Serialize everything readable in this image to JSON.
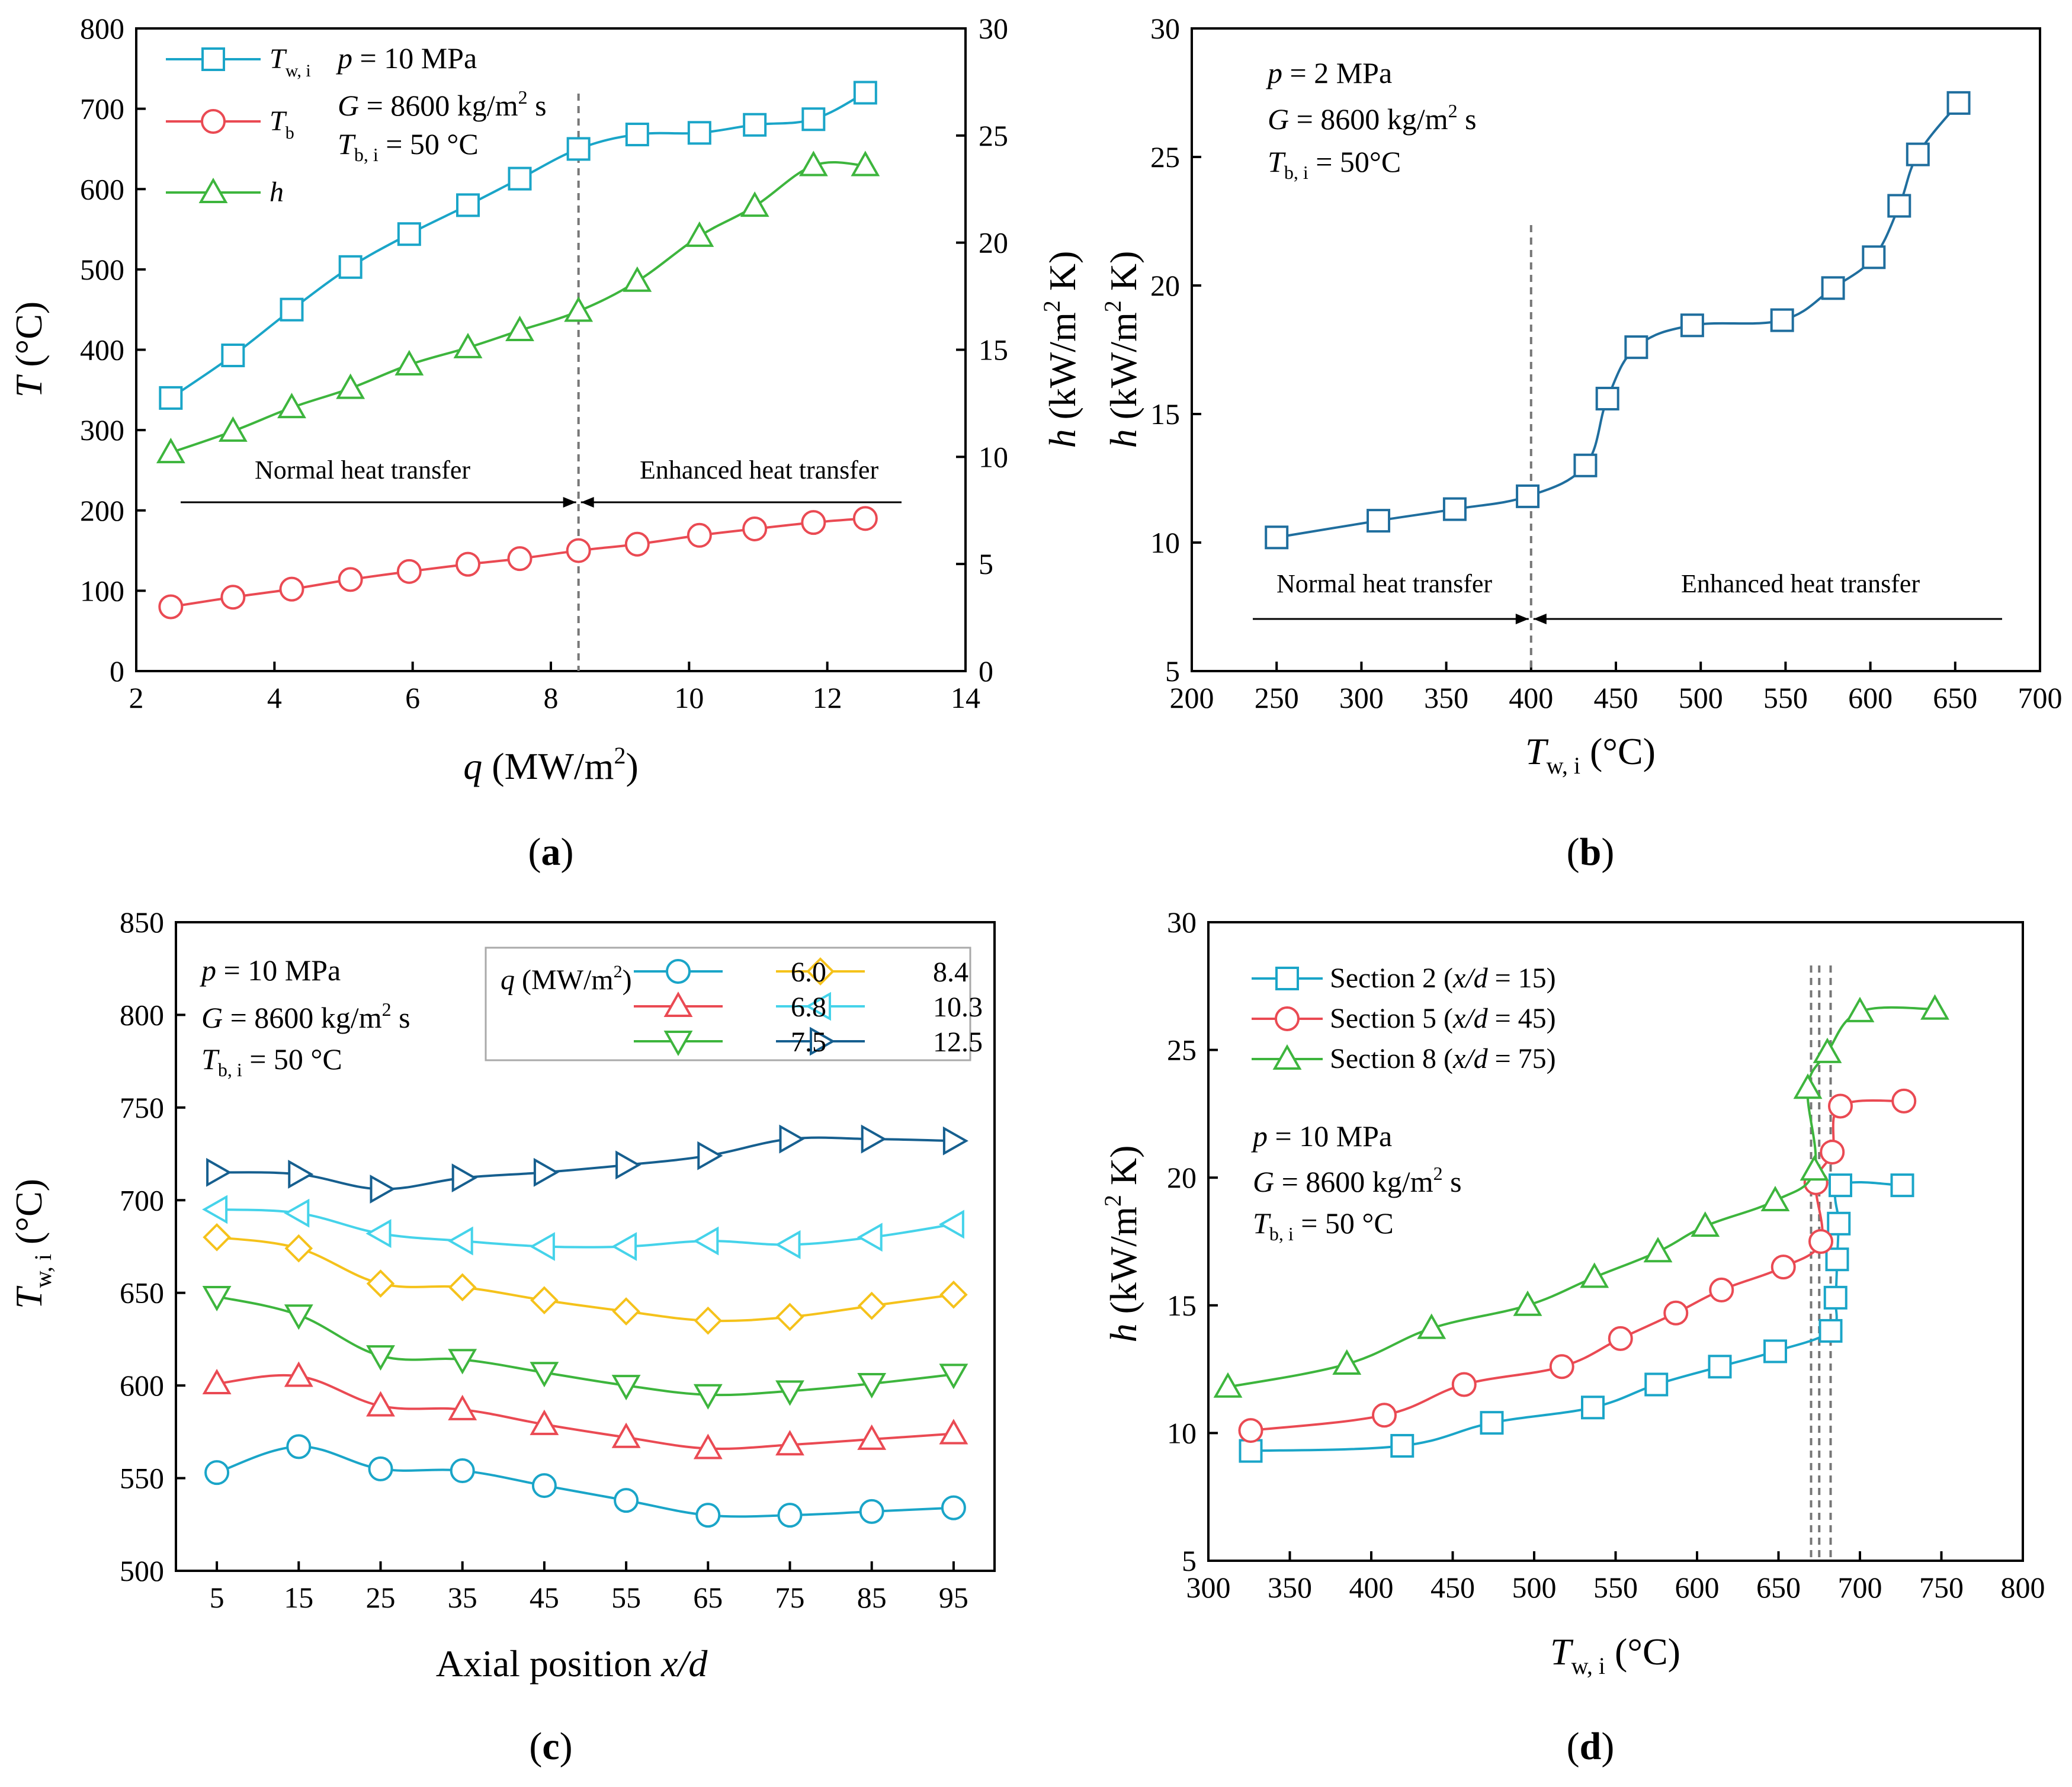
{
  "colors": {
    "cyan": "#1aa5c8",
    "red": "#ea4a53",
    "green": "#3db53d",
    "yellow": "#f5c21b",
    "lightcyan": "#45d3ea",
    "navy": "#165f8f",
    "steel": "#1f6e9e"
  },
  "chart_data": [
    {
      "id": "a",
      "type": "line",
      "caption_letter": "a",
      "xlabel_sym": "q",
      "xlabel_unit": " (MW/m",
      "xlabel_sup": "2",
      "xlabel_close": ")",
      "ylabel_sym": "T",
      "ylabel_unit": " (°C)",
      "y2label_sym": "h",
      "y2label_unit": " (kW/m",
      "y2label_sup": "2",
      "y2label_close": " K)",
      "xlim": [
        2,
        14
      ],
      "ylim": [
        0,
        800
      ],
      "y2lim": [
        0,
        30
      ],
      "xticks": [
        2,
        4,
        6,
        8,
        10,
        12,
        14
      ],
      "yticks": [
        0,
        100,
        200,
        300,
        400,
        500,
        600,
        700,
        800
      ],
      "y2ticks": [
        0,
        5,
        10,
        15,
        20,
        25,
        30
      ],
      "annotations": {
        "p_sym": "p",
        "p_rest": " = 10 MPa",
        "G_sym": "G",
        "G_rest": " = 8600 kg/m",
        "G_sup": "2",
        "G_tail": " s",
        "T_sym": "T",
        "T_sub": "b, i",
        "T_rest": " = 50 °C"
      },
      "regions": {
        "left": "Normal heat transfer",
        "right": "Enhanced heat transfer"
      },
      "boundary_x": 8.4,
      "legend": [
        {
          "sym": "T",
          "sub": "w, i"
        },
        {
          "sym": "T",
          "sub": "b"
        },
        {
          "sym": "h",
          "sub": ""
        }
      ],
      "series": [
        {
          "name": "Tw,i",
          "axis": "left",
          "marker": "square",
          "color": "#1aa5c8",
          "x": [
            2.5,
            3.4,
            4.25,
            5.1,
            5.95,
            6.8,
            7.55,
            8.4,
            9.25,
            10.15,
            10.95,
            11.8,
            12.55
          ],
          "y": [
            340,
            393,
            450,
            503,
            544,
            580,
            613,
            650,
            668,
            670,
            680,
            687,
            720
          ]
        },
        {
          "name": "Tb",
          "axis": "left",
          "marker": "circle",
          "color": "#ea4a53",
          "x": [
            2.5,
            3.4,
            4.25,
            5.1,
            5.95,
            6.8,
            7.55,
            8.4,
            9.25,
            10.15,
            10.95,
            11.8,
            12.55
          ],
          "y": [
            80,
            92,
            102,
            114,
            124,
            133,
            140,
            150,
            158,
            169,
            177,
            185,
            190
          ]
        },
        {
          "name": "h",
          "axis": "right",
          "marker": "triangle-up",
          "color": "#3db53d",
          "x": [
            2.5,
            3.4,
            4.25,
            5.1,
            5.95,
            6.8,
            7.55,
            8.4,
            9.25,
            10.15,
            10.95,
            11.8,
            12.55
          ],
          "y": [
            10.2,
            11.2,
            12.3,
            13.2,
            14.3,
            15.1,
            15.9,
            16.8,
            18.2,
            20.3,
            21.7,
            23.6,
            23.6
          ]
        }
      ]
    },
    {
      "id": "b",
      "type": "line",
      "caption_letter": "b",
      "xlabel_sym": "T",
      "xlabel_sub": "w, i",
      "xlabel_unit": " (°C)",
      "ylabel_sym": "h",
      "ylabel_unit": " (kW/m",
      "ylabel_sup": "2",
      "ylabel_close": " K)",
      "xlim": [
        200,
        700
      ],
      "ylim": [
        5,
        30
      ],
      "xticks": [
        200,
        250,
        300,
        350,
        400,
        450,
        500,
        550,
        600,
        650,
        700
      ],
      "yticks": [
        5,
        10,
        15,
        20,
        25,
        30
      ],
      "annotations": {
        "p_sym": "p",
        "p_rest": " = 2 MPa",
        "G_sym": "G",
        "G_rest": " = 8600 kg/m",
        "G_sup": "2",
        "G_tail": " s",
        "T_sym": "T",
        "T_sub": "b, i",
        "T_rest": " = 50°C"
      },
      "regions": {
        "left": "Normal heat transfer",
        "right": "Enhanced heat transfer"
      },
      "boundary_x": 400,
      "series": [
        {
          "name": "h",
          "marker": "square",
          "color": "#1f6e9e",
          "x": [
            250,
            310,
            355,
            398,
            432,
            445,
            462,
            495,
            548,
            578,
            602,
            617,
            628,
            652
          ],
          "y": [
            10.2,
            10.85,
            11.3,
            11.8,
            13.0,
            15.6,
            17.6,
            18.45,
            18.65,
            19.9,
            21.1,
            23.1,
            25.1,
            27.1
          ]
        }
      ]
    },
    {
      "id": "c",
      "type": "line",
      "caption_letter": "c",
      "xlabel_text": "Axial position ",
      "xlabel_sym": "x/d",
      "ylabel_sym": "T",
      "ylabel_sub": "w, i",
      "ylabel_unit": " (°C)",
      "xlim": [
        0,
        100
      ],
      "ylim": [
        500,
        850
      ],
      "xticks": [
        5,
        15,
        25,
        35,
        45,
        55,
        65,
        75,
        85,
        95
      ],
      "yticks": [
        500,
        550,
        600,
        650,
        700,
        750,
        800,
        850
      ],
      "annotations": {
        "p_sym": "p",
        "p_rest": " = 10 MPa",
        "G_sym": "G",
        "G_rest": " = 8600 kg/m",
        "G_sup": "2",
        "G_tail": " s",
        "T_sym": "T",
        "T_sub": "b, i",
        "T_rest": " = 50 °C"
      },
      "legend_title": {
        "sym": "q",
        "unit": " (MW/m",
        "sup": "2",
        "close": ")"
      },
      "series": [
        {
          "name": "6.0",
          "marker": "circle",
          "color": "#1aa5c8",
          "x": [
            5,
            15,
            25,
            35,
            45,
            55,
            65,
            75,
            85,
            95
          ],
          "y": [
            553,
            567,
            555,
            554,
            546,
            538,
            530,
            530,
            532,
            534
          ]
        },
        {
          "name": "6.8",
          "marker": "triangle-up",
          "color": "#ea4a53",
          "x": [
            5,
            15,
            25,
            35,
            45,
            55,
            65,
            75,
            85,
            95
          ],
          "y": [
            601,
            605,
            589,
            587,
            579,
            572,
            566,
            568,
            571,
            574
          ]
        },
        {
          "name": "7.5",
          "marker": "triangle-down",
          "color": "#3db53d",
          "x": [
            5,
            15,
            25,
            35,
            45,
            55,
            65,
            75,
            85,
            95
          ],
          "y": [
            648,
            638,
            616,
            614,
            607,
            600,
            595,
            597,
            601,
            606
          ]
        },
        {
          "name": "8.4",
          "marker": "diamond",
          "color": "#f5c21b",
          "x": [
            5,
            15,
            25,
            35,
            45,
            55,
            65,
            75,
            85,
            95
          ],
          "y": [
            680,
            674,
            655,
            653,
            646,
            640,
            635,
            637,
            643,
            649
          ]
        },
        {
          "name": "10.3",
          "marker": "triangle-left",
          "color": "#45d3ea",
          "x": [
            5,
            15,
            25,
            35,
            45,
            55,
            65,
            75,
            85,
            95
          ],
          "y": [
            695,
            693,
            682,
            678,
            675,
            675,
            678,
            676,
            680,
            687
          ]
        },
        {
          "name": "12.5",
          "marker": "triangle-right",
          "color": "#165f8f",
          "x": [
            5,
            15,
            25,
            35,
            45,
            55,
            65,
            75,
            85,
            95
          ],
          "y": [
            715,
            714,
            706,
            712,
            715,
            719,
            724,
            733,
            733,
            732
          ]
        }
      ]
    },
    {
      "id": "d",
      "type": "line",
      "caption_letter": "d",
      "xlabel_sym": "T",
      "xlabel_sub": "w, i",
      "xlabel_unit": " (°C)",
      "ylabel_sym": "h",
      "ylabel_unit": " (kW/m",
      "ylabel_sup": "2",
      "ylabel_close": " K)",
      "xlim": [
        300,
        800
      ],
      "ylim": [
        5,
        30
      ],
      "xticks": [
        300,
        350,
        400,
        450,
        500,
        550,
        600,
        650,
        700,
        750,
        800
      ],
      "yticks": [
        5,
        10,
        15,
        20,
        25,
        30
      ],
      "annotations": {
        "p_sym": "p",
        "p_rest": " = 10 MPa",
        "G_sym": "G",
        "G_rest": " = 8600 kg/m",
        "G_sup": "2",
        "G_tail": " s",
        "T_sym": "T",
        "T_sub": "b, i",
        "T_rest": " = 50 °C"
      },
      "boundary_x": [
        670,
        675,
        682
      ],
      "series": [
        {
          "name_pre": "Section 2 (",
          "name_sym": "x/d",
          "name_post": " = 15)",
          "marker": "square",
          "color": "#1aa5c8",
          "x": [
            326,
            419,
            474,
            536,
            575,
            614,
            648,
            682,
            685,
            686,
            687,
            688,
            726
          ],
          "y": [
            9.3,
            9.5,
            10.4,
            11.0,
            11.9,
            12.6,
            13.2,
            14.0,
            15.3,
            16.8,
            18.2,
            19.7,
            19.7
          ]
        },
        {
          "name_pre": "Section 5 (",
          "name_sym": "x/d",
          "name_post": " = 45)",
          "marker": "circle",
          "color": "#ea4a53",
          "x": [
            326,
            408,
            457,
            517,
            553,
            587,
            615,
            653,
            676,
            673,
            683,
            688,
            727
          ],
          "y": [
            10.1,
            10.7,
            11.9,
            12.6,
            13.7,
            14.7,
            15.6,
            16.5,
            17.5,
            19.8,
            21.0,
            22.8,
            23.0
          ]
        },
        {
          "name_pre": "Section 8 (",
          "name_sym": "x/d",
          "name_post": " = 75)",
          "marker": "triangle-up",
          "color": "#3db53d",
          "x": [
            312,
            385,
            437,
            496,
            537,
            576,
            605,
            648,
            672,
            668,
            680,
            700,
            746
          ],
          "y": [
            11.8,
            12.7,
            14.1,
            15.0,
            16.1,
            17.1,
            18.1,
            19.1,
            20.3,
            23.5,
            24.9,
            26.5,
            26.6
          ]
        }
      ]
    }
  ]
}
